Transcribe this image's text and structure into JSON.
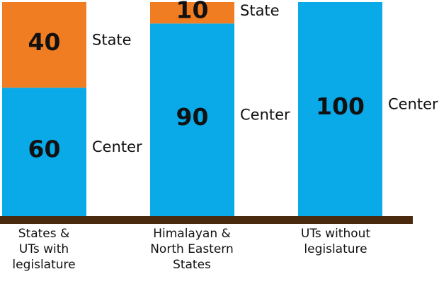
{
  "chart_data": {
    "type": "stacked_bar",
    "categories": [
      "States &\nUTs with\nlegislature",
      "Himalayan &\nNorth Eastern\nStates",
      "UTs without\nlegislature"
    ],
    "series": [
      {
        "name": "Center",
        "color": "#0aa9e8",
        "values": [
          60,
          90,
          100
        ]
      },
      {
        "name": "State",
        "color": "#f07d21",
        "values": [
          40,
          10,
          null
        ]
      }
    ]
  }
}
